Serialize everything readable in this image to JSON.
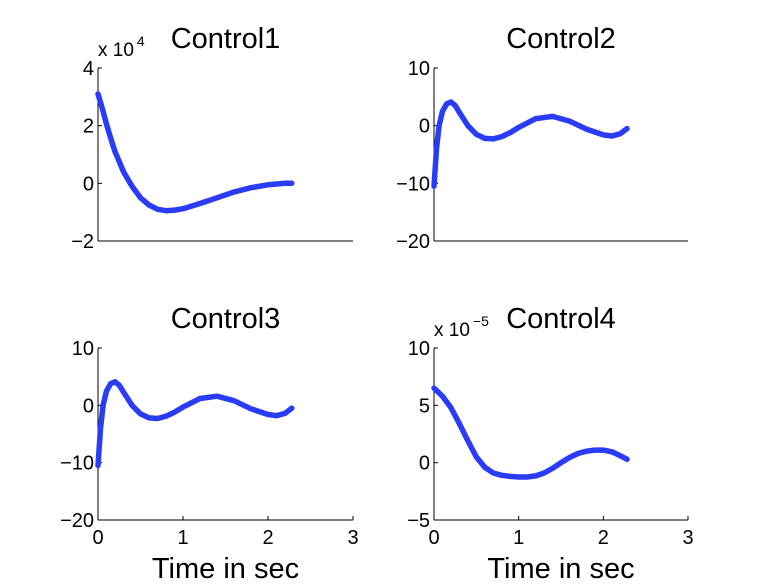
{
  "chart_data": [
    {
      "type": "line",
      "title": "Control1",
      "exponent_label": "x 10",
      "exponent": "4",
      "xlabel": "",
      "ylabel": "",
      "xlim": [
        0,
        3
      ],
      "ylim": [
        -2,
        4
      ],
      "xticks": [],
      "yticks": [
        -2,
        0,
        2,
        4
      ],
      "ytick_labels": [
        "−2",
        "0",
        "2",
        "4"
      ],
      "series": [
        {
          "name": "Control1",
          "color": "#2b3cf7",
          "x": [
            0,
            0.05,
            0.1,
            0.15,
            0.2,
            0.3,
            0.4,
            0.5,
            0.6,
            0.7,
            0.8,
            0.9,
            1.0,
            1.2,
            1.4,
            1.6,
            1.8,
            2.0,
            2.2,
            2.28
          ],
          "y": [
            3.1,
            2.6,
            2.05,
            1.55,
            1.1,
            0.4,
            -0.1,
            -0.5,
            -0.75,
            -0.9,
            -0.95,
            -0.93,
            -0.88,
            -0.7,
            -0.5,
            -0.3,
            -0.15,
            -0.05,
            0.0,
            0.0
          ]
        }
      ]
    },
    {
      "type": "line",
      "title": "Control2",
      "xlabel": "",
      "ylabel": "",
      "xlim": [
        0,
        3
      ],
      "ylim": [
        -20,
        10
      ],
      "xticks": [],
      "yticks": [
        -20,
        -10,
        0,
        10
      ],
      "ytick_labels": [
        "−20",
        "−10",
        "0",
        "10"
      ],
      "series": [
        {
          "name": "Control2",
          "color": "#2b3cf7",
          "x": [
            0,
            0.03,
            0.06,
            0.1,
            0.15,
            0.2,
            0.25,
            0.3,
            0.4,
            0.5,
            0.6,
            0.7,
            0.8,
            0.9,
            1.0,
            1.2,
            1.4,
            1.6,
            1.8,
            2.0,
            2.1,
            2.2,
            2.28
          ],
          "y": [
            -10.5,
            -4,
            0,
            2.5,
            3.8,
            4.1,
            3.5,
            2.3,
            0,
            -1.5,
            -2.2,
            -2.3,
            -1.9,
            -1.2,
            -0.3,
            1.2,
            1.6,
            0.8,
            -0.6,
            -1.6,
            -1.8,
            -1.4,
            -0.5
          ]
        }
      ]
    },
    {
      "type": "line",
      "title": "Control3",
      "xlabel": "Time in sec",
      "ylabel": "",
      "xlim": [
        0,
        3
      ],
      "ylim": [
        -20,
        10
      ],
      "xticks": [
        0,
        1,
        2,
        3
      ],
      "xtick_labels": [
        "0",
        "1",
        "2",
        "3"
      ],
      "yticks": [
        -20,
        -10,
        0,
        10
      ],
      "ytick_labels": [
        "−20",
        "−10",
        "0",
        "10"
      ],
      "series": [
        {
          "name": "Control3",
          "color": "#2b3cf7",
          "x": [
            0,
            0.03,
            0.06,
            0.1,
            0.15,
            0.2,
            0.25,
            0.3,
            0.4,
            0.5,
            0.6,
            0.7,
            0.8,
            0.9,
            1.0,
            1.2,
            1.4,
            1.6,
            1.8,
            2.0,
            2.1,
            2.2,
            2.28
          ],
          "y": [
            -10.5,
            -4,
            0,
            2.5,
            3.8,
            4.1,
            3.5,
            2.3,
            0,
            -1.5,
            -2.2,
            -2.3,
            -1.9,
            -1.2,
            -0.3,
            1.2,
            1.6,
            0.8,
            -0.6,
            -1.6,
            -1.8,
            -1.4,
            -0.5
          ]
        }
      ]
    },
    {
      "type": "line",
      "title": "Control4",
      "exponent_label": "x 10",
      "exponent": "−5",
      "xlabel": "Time in sec",
      "ylabel": "",
      "xlim": [
        0,
        3
      ],
      "ylim": [
        -5,
        10
      ],
      "xticks": [
        0,
        1,
        2,
        3
      ],
      "xtick_labels": [
        "0",
        "1",
        "2",
        "3"
      ],
      "yticks": [
        -5,
        0,
        5,
        10
      ],
      "ytick_labels": [
        "−5",
        "0",
        "5",
        "10"
      ],
      "series": [
        {
          "name": "Control4",
          "color": "#2b3cf7",
          "x": [
            0,
            0.1,
            0.2,
            0.3,
            0.4,
            0.5,
            0.6,
            0.7,
            0.8,
            0.9,
            1.0,
            1.1,
            1.2,
            1.3,
            1.4,
            1.5,
            1.6,
            1.7,
            1.8,
            1.9,
            2.0,
            2.1,
            2.2,
            2.28
          ],
          "y": [
            6.5,
            5.8,
            4.8,
            3.4,
            1.9,
            0.5,
            -0.4,
            -0.9,
            -1.1,
            -1.2,
            -1.25,
            -1.25,
            -1.15,
            -0.9,
            -0.5,
            0,
            0.45,
            0.8,
            1.0,
            1.1,
            1.1,
            0.95,
            0.6,
            0.3
          ]
        }
      ]
    }
  ]
}
